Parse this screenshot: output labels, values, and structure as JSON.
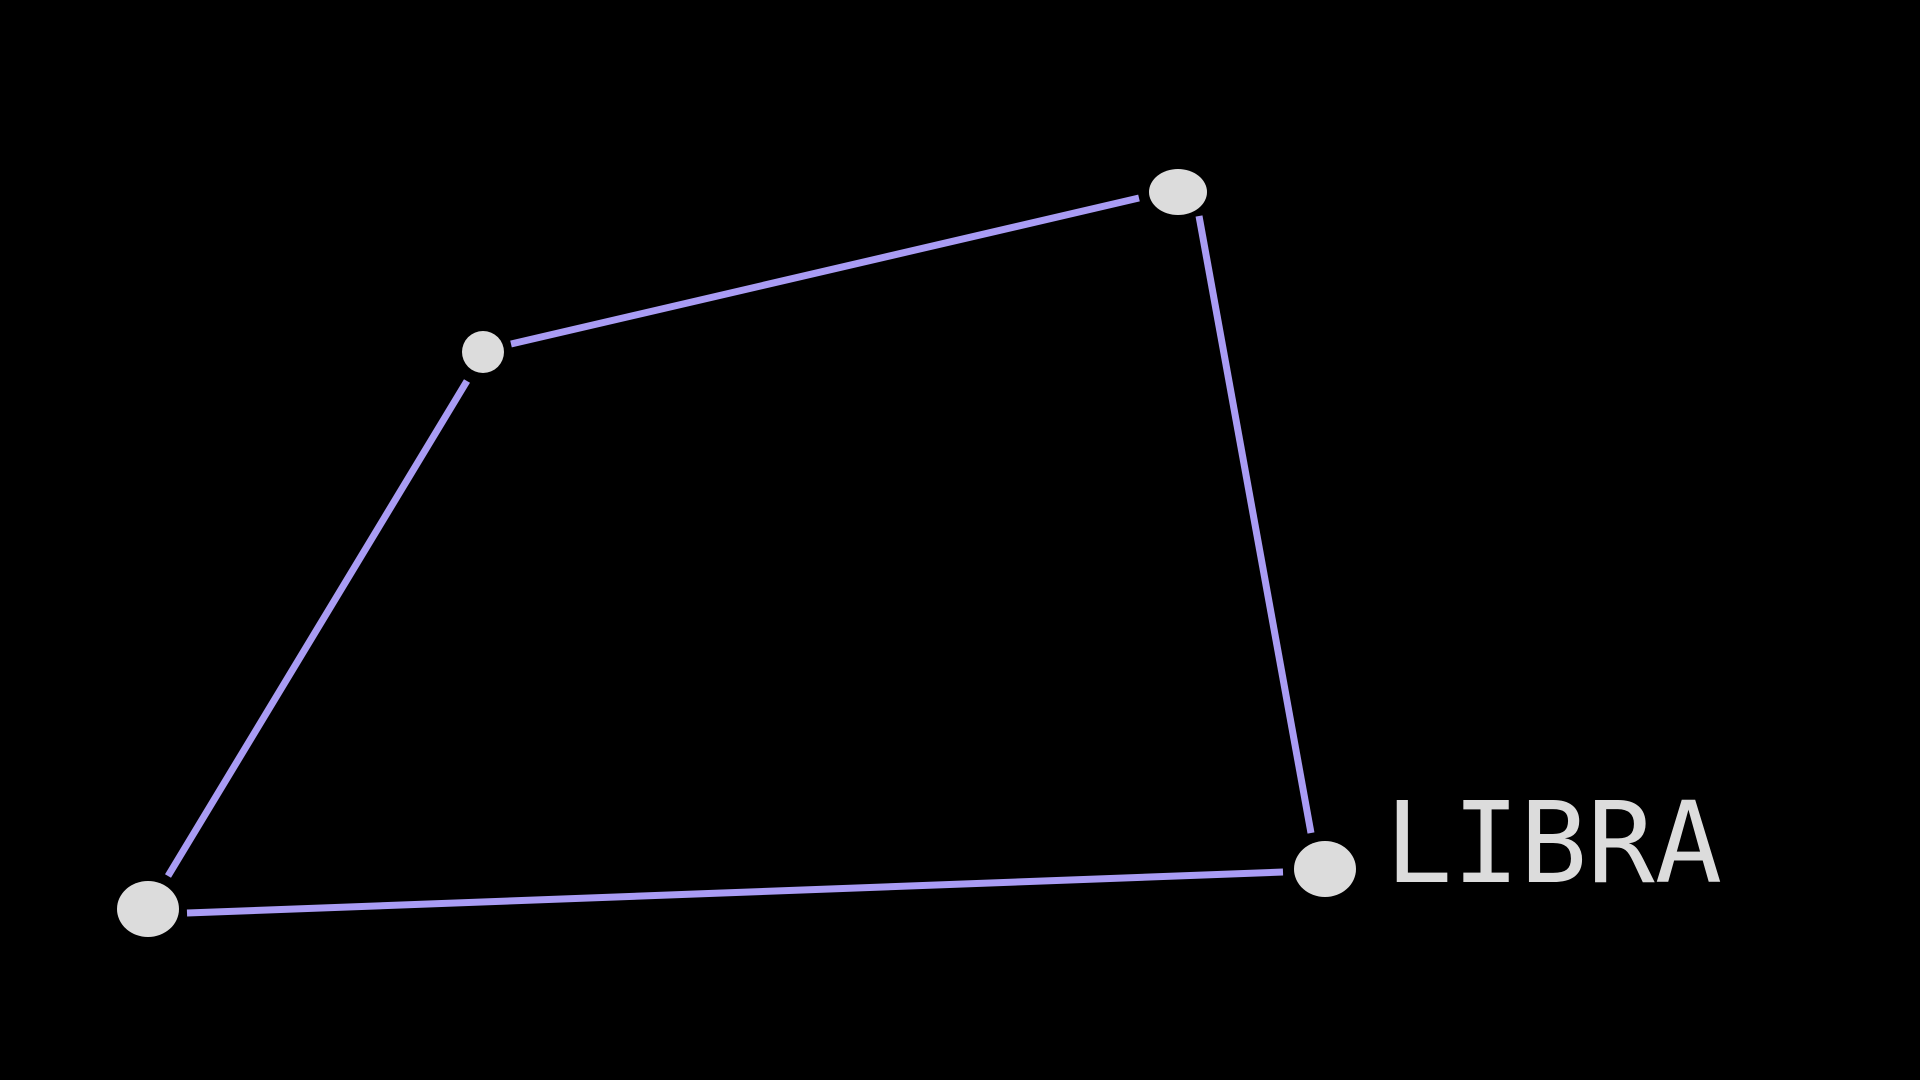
{
  "constellation": {
    "name": "LIBRA",
    "colors": {
      "background": "#000000",
      "star": "#dcdcdc",
      "line": "#a99cf4",
      "label": "#dcdcdc"
    }
  }
}
